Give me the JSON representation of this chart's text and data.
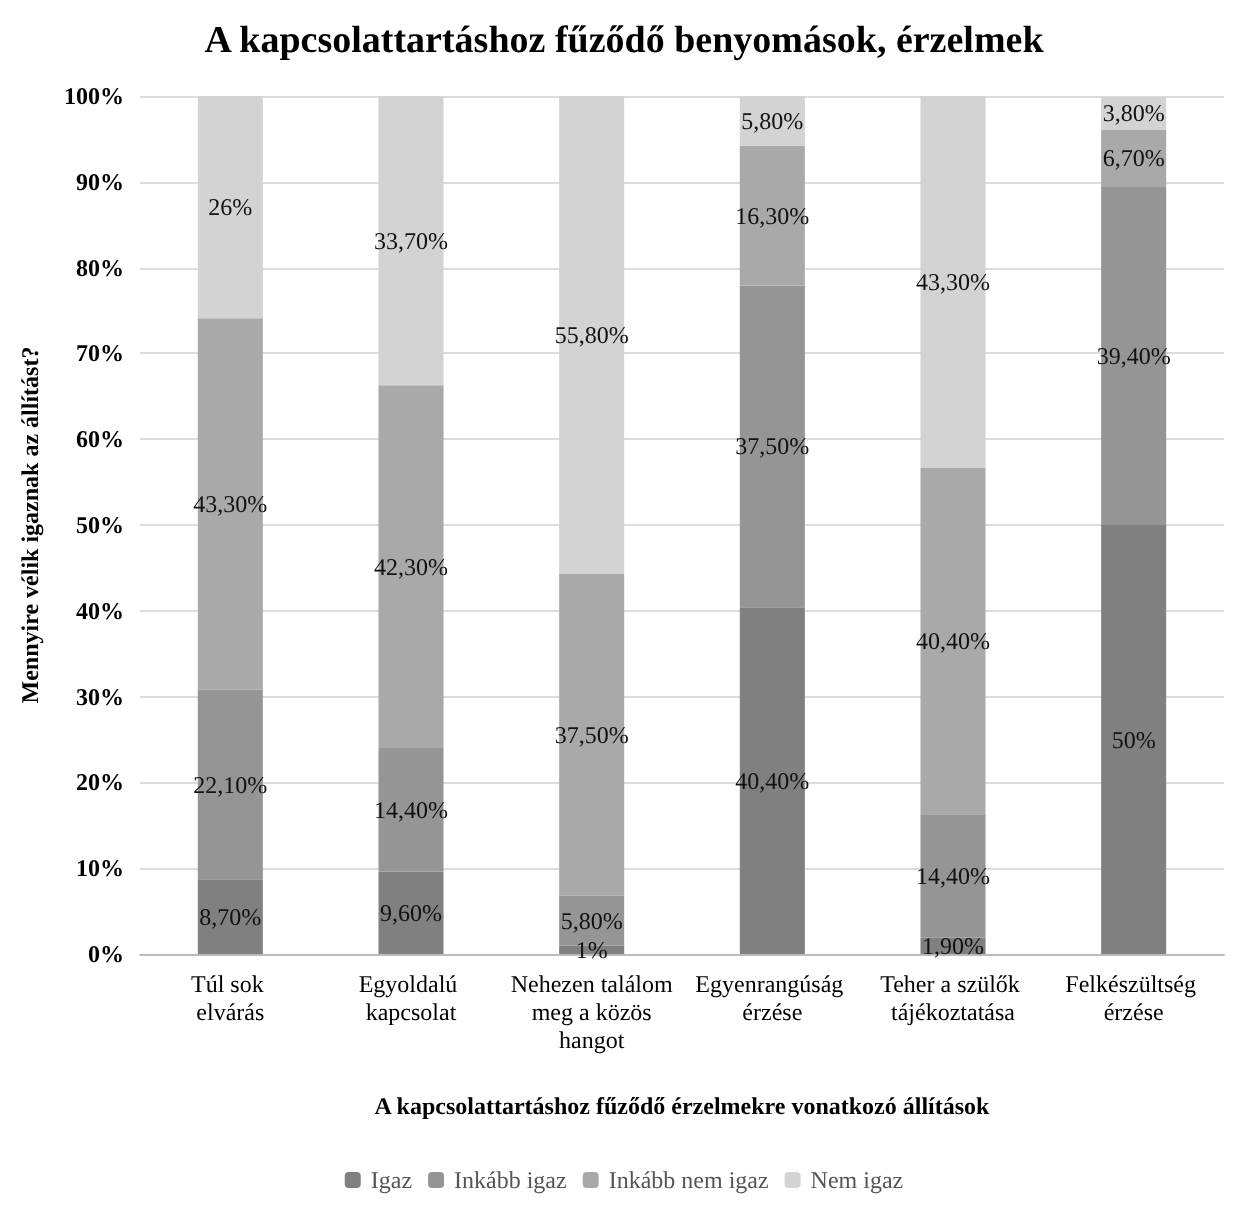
{
  "chart_data": {
    "type": "bar",
    "stacked": true,
    "title": "A kapcsolattartáshoz fűződő benyomások, érzelmek",
    "xlabel": "A kapcsolattartáshoz fűződő érzelmekre vonatkozó állítások",
    "ylabel": "Mennyire vélik igaznak az állítást?",
    "categories": [
      "Túl sok elvárás",
      "Egyoldalú kapcsolat",
      "Nehezen találom meg a közös hangot",
      "Egyenrangúság érzése",
      "Teher a szülők tájékoztatása",
      "Felkészültség érzése"
    ],
    "series": [
      {
        "name": "Igaz",
        "color": "#808080",
        "values": [
          8.7,
          9.6,
          1,
          40.4,
          1.9,
          50
        ],
        "value_labels": [
          "8,70%",
          "9,60%",
          "1%",
          "40,40%",
          "1,90%",
          "50%"
        ]
      },
      {
        "name": "Inkább igaz",
        "color": "#959595",
        "values": [
          22.1,
          14.4,
          5.8,
          37.5,
          14.4,
          39.4
        ],
        "value_labels": [
          "22,10%",
          "14,40%",
          "5,80%",
          "37,50%",
          "14,40%",
          "39,40%"
        ]
      },
      {
        "name": "Inkább nem igaz",
        "color": "#a9a9a9",
        "values": [
          43.3,
          42.3,
          37.5,
          16.3,
          40.4,
          6.7
        ],
        "value_labels": [
          "43,30%",
          "42,30%",
          "37,50%",
          "16,30%",
          "40,40%",
          "6,70%"
        ]
      },
      {
        "name": "Nem igaz",
        "color": "#d3d3d3",
        "values": [
          26,
          33.7,
          55.8,
          5.8,
          43.3,
          3.8
        ],
        "value_labels": [
          "26%",
          "33,70%",
          "55,80%",
          "5,80%",
          "43,30%",
          "3,80%"
        ]
      }
    ],
    "ylim": [
      0,
      100
    ],
    "yticks": [
      {
        "value": 0,
        "label": "0%"
      },
      {
        "value": 10,
        "label": "10%"
      },
      {
        "value": 20,
        "label": "20%"
      },
      {
        "value": 30,
        "label": "30%"
      },
      {
        "value": 40,
        "label": "40%"
      },
      {
        "value": 50,
        "label": "50%"
      },
      {
        "value": 60,
        "label": "60%"
      },
      {
        "value": 70,
        "label": "70%"
      },
      {
        "value": 80,
        "label": "80%"
      },
      {
        "value": 90,
        "label": "90%"
      },
      {
        "value": 100,
        "label": "100%"
      }
    ],
    "grid": true,
    "legend": "bottom"
  }
}
